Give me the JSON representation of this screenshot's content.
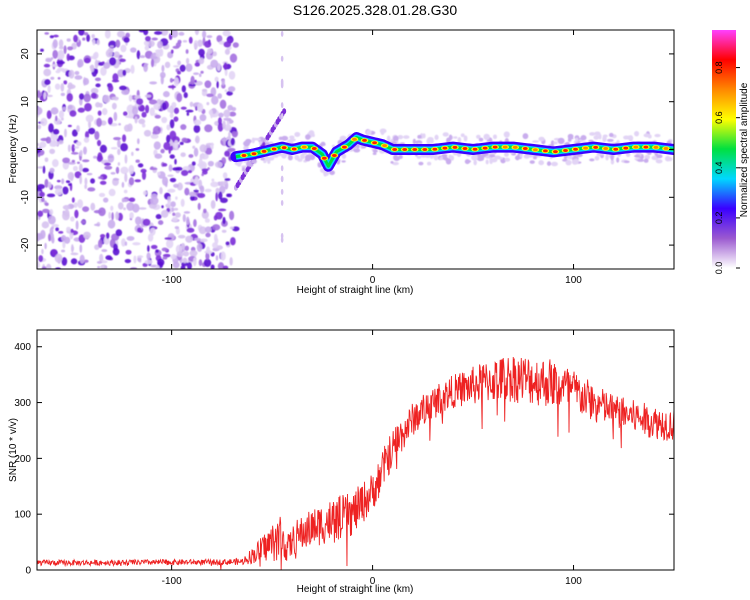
{
  "title": "S126.2025.328.01.28.G30",
  "chart_data": [
    {
      "type": "heatmap",
      "xlabel": "Height of straight line (km)",
      "ylabel": "Frequency (Hz)",
      "xlim": [
        -167,
        150
      ],
      "ylim": [
        -25,
        25
      ],
      "xticks": [
        -100,
        0,
        100
      ],
      "yticks": [
        -20,
        -10,
        0,
        10,
        20
      ],
      "noise_region_x": [
        -167,
        -68
      ],
      "ridge": {
        "x": [
          -68,
          -60,
          -50,
          -45,
          -40,
          -35,
          -30,
          -25,
          -22,
          -18,
          -12,
          -8,
          -5,
          0,
          5,
          10,
          20,
          30,
          40,
          50,
          60,
          70,
          80,
          90,
          100,
          110,
          120,
          130,
          140,
          150
        ],
        "freq": [
          -1.5,
          -1.0,
          0.0,
          0.5,
          0.0,
          0.5,
          0.5,
          -1.0,
          -3.5,
          -0.5,
          1.0,
          2.5,
          2.0,
          1.5,
          1.0,
          0.0,
          0.0,
          0.0,
          0.5,
          0.0,
          0.5,
          0.5,
          0.0,
          -0.5,
          0.0,
          0.5,
          0.0,
          0.5,
          0.5,
          0.0
        ]
      },
      "colorbar": {
        "label": "Normalized spectral amplitude",
        "ticks": [
          "0.0",
          "0.2",
          "0.4",
          "0.6",
          "0.8"
        ],
        "colors": [
          "#ffffff",
          "#9b59d0",
          "#3a00ff",
          "#00d8ff",
          "#00e040",
          "#ffff00",
          "#ff8800",
          "#ff0000",
          "#ff40ff"
        ]
      }
    },
    {
      "type": "line",
      "xlabel": "Height of straight line (km)",
      "ylabel": "SNR (10 * v/v)",
      "xlim": [
        -167,
        150
      ],
      "ylim": [
        0,
        430
      ],
      "xticks": [
        -100,
        0,
        100
      ],
      "yticks": [
        0,
        100,
        200,
        300,
        400
      ],
      "color": "#ee2222",
      "envelope": {
        "x": [
          -167,
          -140,
          -100,
          -80,
          -65,
          -58,
          -52,
          -46,
          -42,
          -38,
          -30,
          -20,
          -10,
          0,
          10,
          20,
          30,
          40,
          50,
          60,
          70,
          80,
          90,
          100,
          110,
          120,
          130,
          140,
          150
        ],
        "mean": [
          13,
          13,
          14,
          14,
          15,
          30,
          45,
          60,
          40,
          60,
          75,
          90,
          100,
          140,
          220,
          270,
          300,
          320,
          330,
          340,
          345,
          340,
          335,
          320,
          300,
          285,
          275,
          265,
          260
        ],
        "jitter": [
          5,
          5,
          5,
          5,
          6,
          18,
          30,
          45,
          25,
          30,
          35,
          40,
          40,
          35,
          35,
          30,
          30,
          30,
          35,
          40,
          45,
          45,
          45,
          40,
          35,
          30,
          30,
          30,
          30
        ]
      }
    }
  ]
}
